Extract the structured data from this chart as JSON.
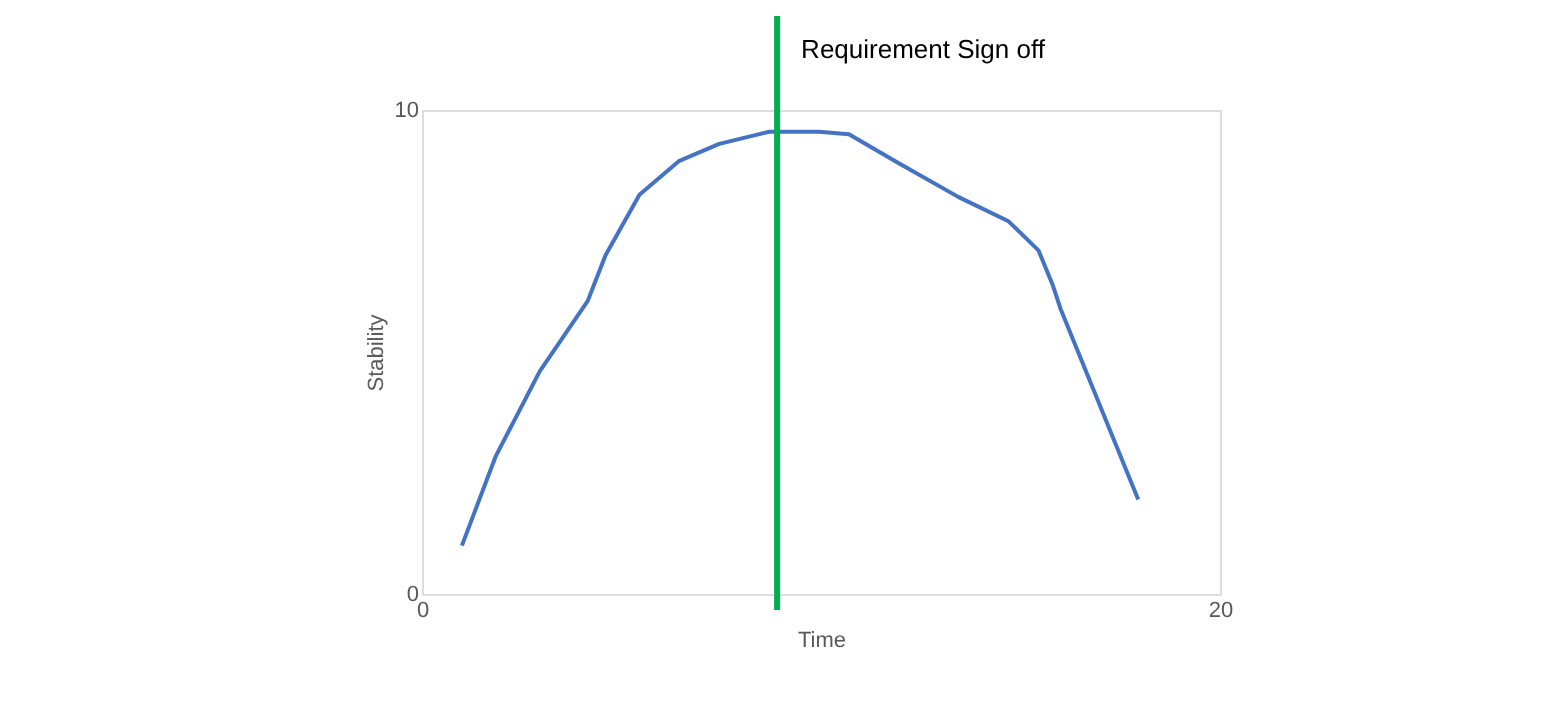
{
  "chart_data": {
    "type": "line",
    "xlabel": "Time",
    "ylabel": "Stability",
    "x": [
      1,
      1.85,
      2.95,
      4.15,
      4.6,
      5.45,
      6.45,
      7.45,
      8.7,
      9.95,
      10.7,
      11.95,
      13.45,
      14.7,
      15.45,
      15.8,
      16,
      17.95
    ],
    "series": [
      {
        "color": "#4472c4",
        "values": [
          1,
          2.85,
          4.6,
          6.05,
          7.0,
          8.25,
          8.95,
          9.3,
          9.55,
          9.55,
          9.5,
          8.9,
          8.2,
          7.7,
          7.1,
          6.4,
          5.9,
          1.95
        ]
      }
    ],
    "xlim": [
      0,
      20
    ],
    "xticks": [
      0,
      20
    ],
    "ylim": [
      0,
      10
    ],
    "yticks": [
      0,
      10
    ],
    "marker": "none",
    "line_style": "solid",
    "ref_lines": [
      {
        "axis": "x",
        "value": 8.9,
        "label": "Requirement Sign off",
        "color": "#00b050",
        "line_style": "solid"
      }
    ]
  }
}
